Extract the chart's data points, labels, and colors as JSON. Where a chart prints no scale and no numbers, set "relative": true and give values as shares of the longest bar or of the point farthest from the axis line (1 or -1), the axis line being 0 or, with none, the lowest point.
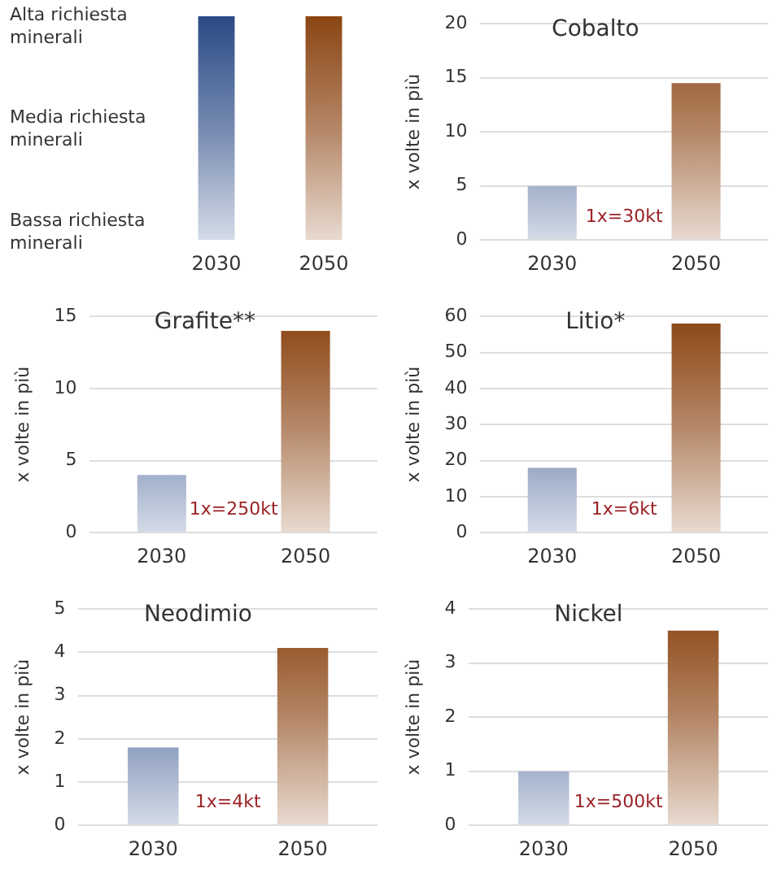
{
  "chart_data": [
    {
      "type": "bar",
      "relative": true,
      "categories": [
        "2030",
        "2050"
      ],
      "values": [
        1,
        1
      ],
      "colors": [
        "#2a4a85",
        "#8b4513"
      ],
      "annotations": [
        "Alta richiesta minerali",
        "Media richiesta minerali",
        "Bassa richiesta minerali"
      ]
    },
    {
      "type": "bar",
      "title": "Cobalto",
      "ylabel": "x volte in più",
      "categories": [
        "2030",
        "2050"
      ],
      "values": [
        5,
        14.5
      ],
      "colors": [
        "#2a4a85",
        "#8b4513"
      ],
      "ylim": [
        0,
        20
      ],
      "yticks": [
        0,
        5,
        10,
        15,
        20
      ],
      "grid": "y",
      "annotations": [
        "1x=30kt"
      ]
    },
    {
      "type": "bar",
      "title": "Grafite**",
      "ylabel": "x volte in più",
      "categories": [
        "2030",
        "2050"
      ],
      "values": [
        4,
        14
      ],
      "colors": [
        "#2a4a85",
        "#8b4513"
      ],
      "ylim": [
        0,
        15
      ],
      "yticks": [
        0,
        5,
        10,
        15
      ],
      "grid": "y",
      "annotations": [
        "1x=250kt"
      ]
    },
    {
      "type": "bar",
      "title": "Litio*",
      "ylabel": "x volte in più",
      "categories": [
        "2030",
        "2050"
      ],
      "values": [
        18,
        58
      ],
      "colors": [
        "#2a4a85",
        "#8b4513"
      ],
      "ylim": [
        0,
        60
      ],
      "yticks": [
        0,
        10,
        20,
        30,
        40,
        50,
        60
      ],
      "grid": "y",
      "annotations": [
        "1x=6kt"
      ]
    },
    {
      "type": "bar",
      "title": "Neodimio",
      "ylabel": "x volte in più",
      "categories": [
        "2030",
        "2050"
      ],
      "values": [
        1.8,
        4.1
      ],
      "colors": [
        "#2a4a85",
        "#8b4513"
      ],
      "ylim": [
        0,
        5
      ],
      "yticks": [
        0,
        1,
        2,
        3,
        4,
        5
      ],
      "grid": "y",
      "annotations": [
        "1x=4kt"
      ]
    },
    {
      "type": "bar",
      "title": "Nickel",
      "ylabel": "x volte in più",
      "categories": [
        "2030",
        "2050"
      ],
      "values": [
        1,
        3.6
      ],
      "colors": [
        "#2a4a85",
        "#8b4513"
      ],
      "ylim": [
        0,
        4
      ],
      "yticks": [
        0,
        1,
        2,
        3,
        4
      ],
      "grid": "y",
      "annotations": [
        "1x=500kt"
      ]
    }
  ]
}
